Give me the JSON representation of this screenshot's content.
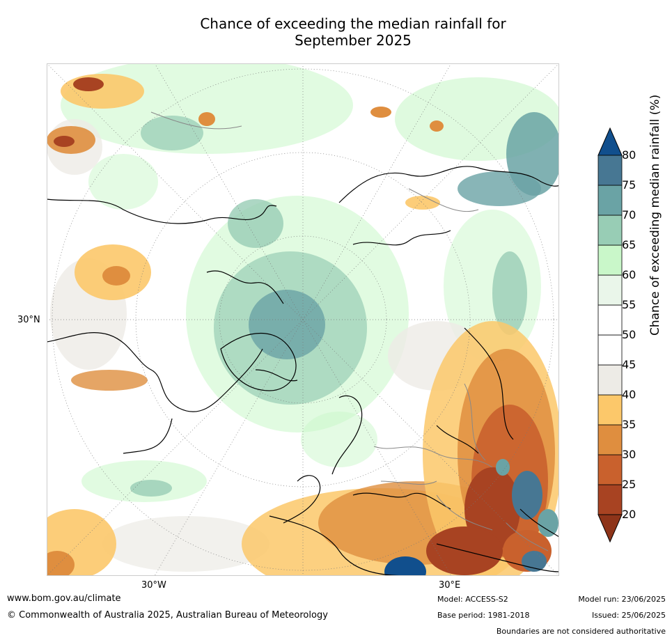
{
  "title_line1": "Chance of exceeding the median rainfall for",
  "title_line2": "September 2025",
  "map": {
    "lat_label": "30°N",
    "lon_west_label": "30°W",
    "lon_east_label": "30°E"
  },
  "colorbar": {
    "title": "Chance of exceeding median rainfall (%)",
    "ticks": [
      "20",
      "25",
      "30",
      "35",
      "40",
      "45",
      "50",
      "55",
      "60",
      "65",
      "70",
      "75",
      "80"
    ],
    "bins": [
      {
        "from": 20,
        "to": 25,
        "color": "#a84322"
      },
      {
        "from": 25,
        "to": 30,
        "color": "#c9612d"
      },
      {
        "from": 30,
        "to": 35,
        "color": "#df8e3f"
      },
      {
        "from": 35,
        "to": 40,
        "color": "#fcc86a"
      },
      {
        "from": 40,
        "to": 45,
        "color": "#edebe6"
      },
      {
        "from": 45,
        "to": 50,
        "color": "#ffffff"
      },
      {
        "from": 50,
        "to": 55,
        "color": "#ffffff"
      },
      {
        "from": 55,
        "to": 60,
        "color": "#eaf6ea"
      },
      {
        "from": 60,
        "to": 65,
        "color": "#c9f7c9"
      },
      {
        "from": 65,
        "to": 70,
        "color": "#98cdb5"
      },
      {
        "from": 70,
        "to": 75,
        "color": "#6aa3a5"
      },
      {
        "from": 75,
        "to": 80,
        "color": "#477793"
      }
    ],
    "under_color": "#8e3419",
    "over_color": "#114f8d"
  },
  "footer": {
    "website": "www.bom.gov.au/climate",
    "copyright": "© Commonwealth of Australia 2025, Australian Bureau of Meteorology",
    "model": "Model: ACCESS-S2",
    "base_period": "Base period: 1981-2018",
    "model_run": "Model run: 23/06/2025",
    "issued": "Issued: 25/06/2025",
    "disclaimer": "Boundaries are not considered authoritative"
  }
}
